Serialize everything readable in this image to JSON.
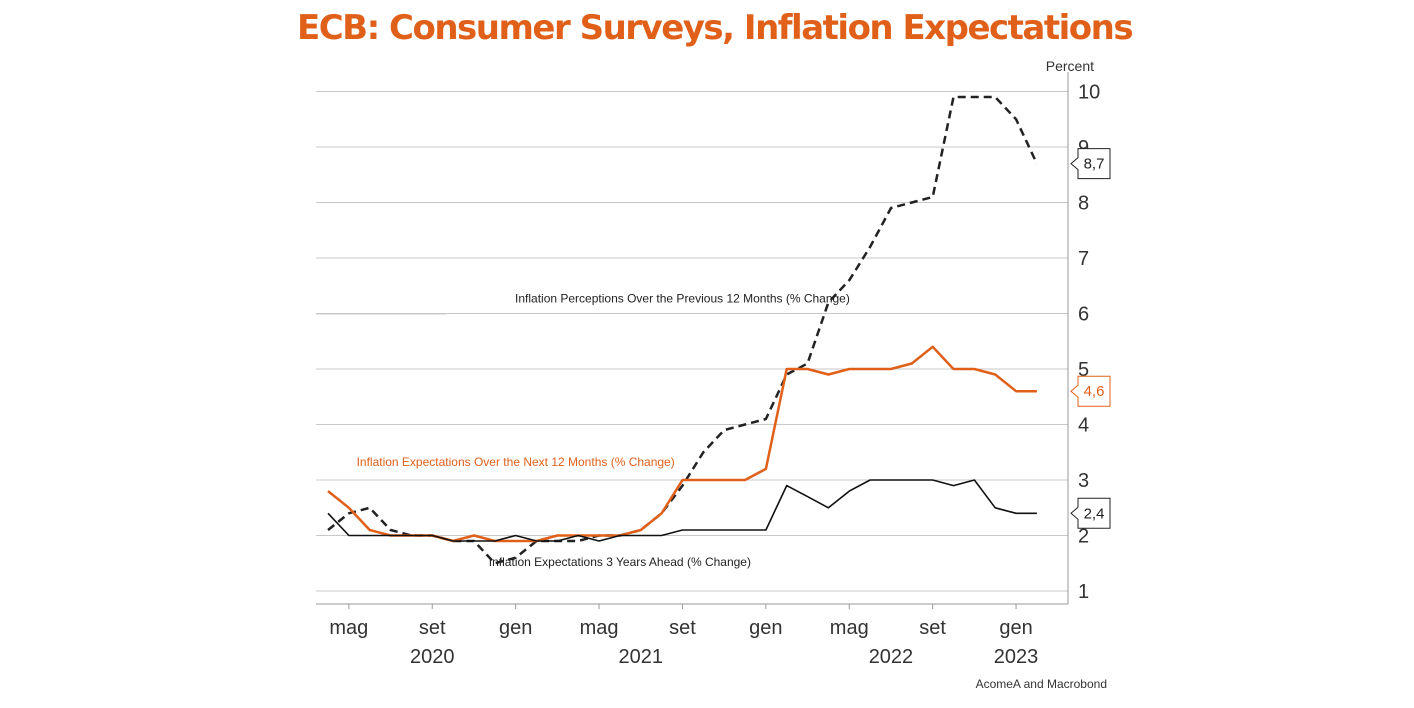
{
  "colors": {
    "accent": "#E0601A",
    "perceptions": "#222222",
    "expectations_12m": "#E0601A",
    "expectations_3y": "#111111",
    "grid": "#c8c8c8",
    "axis": "#999999"
  },
  "chart_data": {
    "type": "line",
    "title": "ECB: Consumer Surveys, Inflation Expectations",
    "ylabel": "Percent",
    "source": "AcomeA and Macrobond",
    "ylim": [
      0.8,
      10.3
    ],
    "grid": true,
    "y_axis_side": "right",
    "y_ticks": [
      1,
      2,
      3,
      4,
      5,
      6,
      7,
      8,
      9,
      10
    ],
    "x_ticks": [
      {
        "label": "mag",
        "x": "2020-05"
      },
      {
        "label": "set",
        "x": "2020-09"
      },
      {
        "label": "gen",
        "x": "2021-01"
      },
      {
        "label": "mag",
        "x": "2021-05"
      },
      {
        "label": "set",
        "x": "2021-09"
      },
      {
        "label": "gen",
        "x": "2022-01"
      },
      {
        "label": "mag",
        "x": "2022-05"
      },
      {
        "label": "set",
        "x": "2022-09"
      },
      {
        "label": "gen",
        "x": "2023-01"
      }
    ],
    "year_labels": [
      {
        "label": "2020",
        "x": "2020-09"
      },
      {
        "label": "2021",
        "x": "2021-07"
      },
      {
        "label": "2022",
        "x": "2022-07"
      },
      {
        "label": "2023",
        "x": "2023-01"
      }
    ],
    "x": [
      "2020-04",
      "2020-05",
      "2020-06",
      "2020-07",
      "2020-08",
      "2020-09",
      "2020-10",
      "2020-11",
      "2020-12",
      "2021-01",
      "2021-02",
      "2021-03",
      "2021-04",
      "2021-05",
      "2021-06",
      "2021-07",
      "2021-08",
      "2021-09",
      "2021-10",
      "2021-11",
      "2021-12",
      "2022-01",
      "2022-02",
      "2022-03",
      "2022-04",
      "2022-05",
      "2022-06",
      "2022-07",
      "2022-08",
      "2022-09",
      "2022-10",
      "2022-11",
      "2022-12",
      "2023-01",
      "2023-02"
    ],
    "series": [
      {
        "name": "Inflation Perceptions Over the Previous 12 Months (% Change)",
        "style": "dashed",
        "label_x": "2021-09",
        "label_y": 6.2,
        "values": [
          2.1,
          2.4,
          2.5,
          2.1,
          2.0,
          2.0,
          1.9,
          1.9,
          1.5,
          1.6,
          1.9,
          1.9,
          1.9,
          2.0,
          2.0,
          2.1,
          2.4,
          2.9,
          3.5,
          3.9,
          4.0,
          4.1,
          4.9,
          5.1,
          6.2,
          6.6,
          7.2,
          7.9,
          8.0,
          8.1,
          9.9,
          9.9,
          9.9,
          9.5,
          8.7
        ],
        "end_label": "8,7"
      },
      {
        "name": "Inflation Expectations Over the Next 12 Months (% Change)",
        "style": "solid",
        "label_x": "2021-01",
        "label_y": 3.25,
        "values": [
          2.8,
          2.5,
          2.1,
          2.0,
          2.0,
          2.0,
          1.9,
          2.0,
          1.9,
          1.9,
          1.9,
          2.0,
          2.0,
          2.0,
          2.0,
          2.1,
          2.4,
          3.0,
          3.0,
          3.0,
          3.0,
          3.2,
          5.0,
          5.0,
          4.9,
          5.0,
          5.0,
          5.0,
          5.1,
          5.4,
          5.0,
          5.0,
          4.9,
          4.6,
          4.6
        ],
        "end_label": "4,6"
      },
      {
        "name": "Inflation Expectations 3 Years Ahead (% Change)",
        "style": "solid",
        "label_x": "2021-06",
        "label_y": 1.45,
        "values": [
          2.4,
          2.0,
          2.0,
          2.0,
          2.0,
          2.0,
          1.9,
          1.9,
          1.9,
          2.0,
          1.9,
          1.9,
          2.0,
          1.9,
          2.0,
          2.0,
          2.0,
          2.1,
          2.1,
          2.1,
          2.1,
          2.1,
          2.9,
          2.7,
          2.5,
          2.8,
          3.0,
          3.0,
          3.0,
          3.0,
          2.9,
          3.0,
          2.5,
          2.4,
          2.4
        ],
        "end_label": "2,4"
      }
    ]
  }
}
